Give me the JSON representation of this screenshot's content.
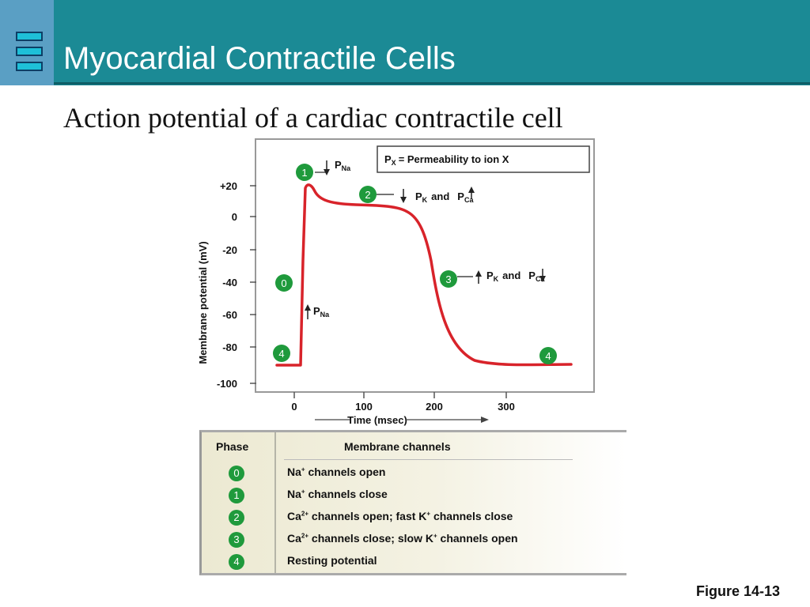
{
  "slide": {
    "title": "Myocardial Contractile Cells",
    "subtitle": "Action potential of a cardiac contractile cell",
    "figure": "Figure 14-13"
  },
  "graph": {
    "y_axis_label": "Membrane potential (mV)",
    "x_axis_label": "Time (msec)",
    "y_ticks": [
      "+20",
      "0",
      "-20",
      "-40",
      "-60",
      "-80",
      "-100"
    ],
    "x_ticks": [
      "0",
      "100",
      "200",
      "300"
    ],
    "legend": {
      "p": "P",
      "x": "X",
      "text": "=  Permeability to ion X"
    },
    "annotations": {
      "p": "P",
      "na": "Na",
      "k": "K",
      "ca": "Ca",
      "and": "and"
    },
    "phase_markers": [
      "1",
      "2",
      "0",
      "3",
      "4",
      "4"
    ],
    "colors": {
      "curve": "#d8232a",
      "badge": "#1f9a3c"
    }
  },
  "table": {
    "header_phase": "Phase",
    "header_channels": "Membrane channels",
    "rows": [
      {
        "phase": "0",
        "ion": "Na",
        "charge": "+",
        "text": " channels open"
      },
      {
        "phase": "1",
        "ion": "Na",
        "charge": "+",
        "text": " channels close"
      },
      {
        "phase": "2",
        "ion": "Ca",
        "charge": "2+",
        "text": " channels open; fast K",
        "charge2": "+",
        "text2": " channels close"
      },
      {
        "phase": "3",
        "ion": "Ca",
        "charge": "2+",
        "text": " channels close; slow K",
        "charge2": "+",
        "text2": " channels open"
      },
      {
        "phase": "4",
        "text": "Resting potential"
      }
    ]
  }
}
